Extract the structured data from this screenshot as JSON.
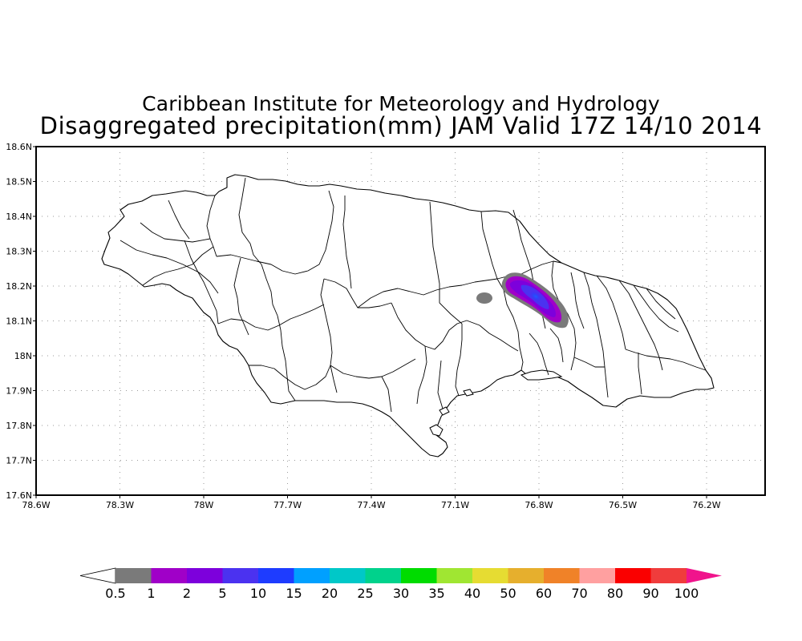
{
  "header": {
    "institution": "Caribbean Institute for Meteorology and Hydrology",
    "product": "Disaggregated precipitation(mm) JAM Valid 17Z 14/10 2014"
  },
  "map": {
    "lat_ticks": [
      "18.6N",
      "18.5N",
      "18.4N",
      "18.3N",
      "18.2N",
      "18.1N",
      "18N",
      "17.9N",
      "17.8N",
      "17.7N",
      "17.6N"
    ],
    "lon_ticks": [
      "78.6W",
      "78.3W",
      "78W",
      "77.7W",
      "77.4W",
      "77.1W",
      "76.8W",
      "76.5W",
      "76.2W"
    ],
    "lat_range": [
      17.6,
      18.6
    ],
    "lon_range": [
      -78.6,
      -76.0
    ],
    "grid": "dotted",
    "coastline_color": "#000000",
    "precip_areas": [
      {
        "name": "main-cell",
        "center_lon": -76.82,
        "center_lat": 18.17,
        "peak_mm": 10
      },
      {
        "name": "isolated-cell",
        "center_lon": -76.98,
        "center_lat": 18.16,
        "peak_mm": 0.7
      }
    ]
  },
  "legend": {
    "labels": [
      "0.5",
      "1",
      "2",
      "5",
      "10",
      "15",
      "20",
      "25",
      "30",
      "35",
      "40",
      "50",
      "60",
      "70",
      "80",
      "90",
      "100"
    ],
    "colors": [
      "#7a7a7a",
      "#a000c8",
      "#7d00dc",
      "#4b32f0",
      "#1e3cff",
      "#00a0ff",
      "#00c8c8",
      "#00d28c",
      "#00dc00",
      "#a0e632",
      "#e6dc32",
      "#e6af2d",
      "#f08228",
      "#ffa0a0",
      "#fa0000",
      "#f03c3c"
    ],
    "under_color": "#ffffff",
    "over_color": "#f0148c"
  }
}
